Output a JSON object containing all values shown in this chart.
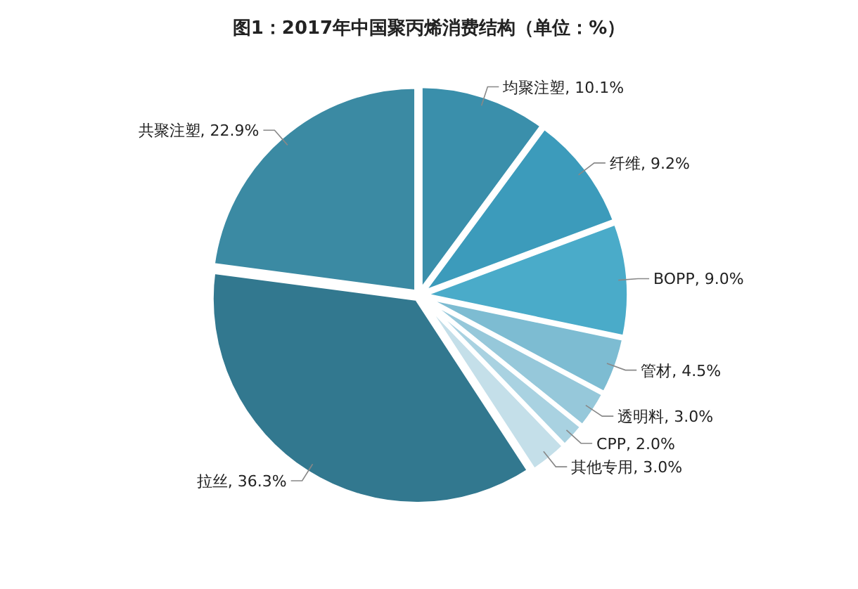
{
  "chart_data": {
    "type": "pie",
    "title": "图1：2017年中国聚丙烯消费结构（单位：%）",
    "categories": [
      "均聚注塑",
      "纤维",
      "BOPP",
      "管材",
      "透明料",
      "CPP",
      "其他专用",
      "拉丝",
      "共聚注塑"
    ],
    "values": [
      10.1,
      9.2,
      9.0,
      4.5,
      3.0,
      2.0,
      3.0,
      36.3,
      22.9
    ],
    "colors": [
      "#3a8fab",
      "#3c9bbb",
      "#4aabc9",
      "#7dbcd2",
      "#96c8da",
      "#a9d2e1",
      "#c4dfe9",
      "#32788f",
      "#3b8aa3"
    ],
    "value_labels": [
      ", 10.1%",
      ", 9.2%",
      ", 9.0%",
      ", 4.5%",
      ", 3.0%",
      ", 2.0%",
      ", 3.0%",
      ", 36.3%",
      ", 22.9%"
    ]
  }
}
